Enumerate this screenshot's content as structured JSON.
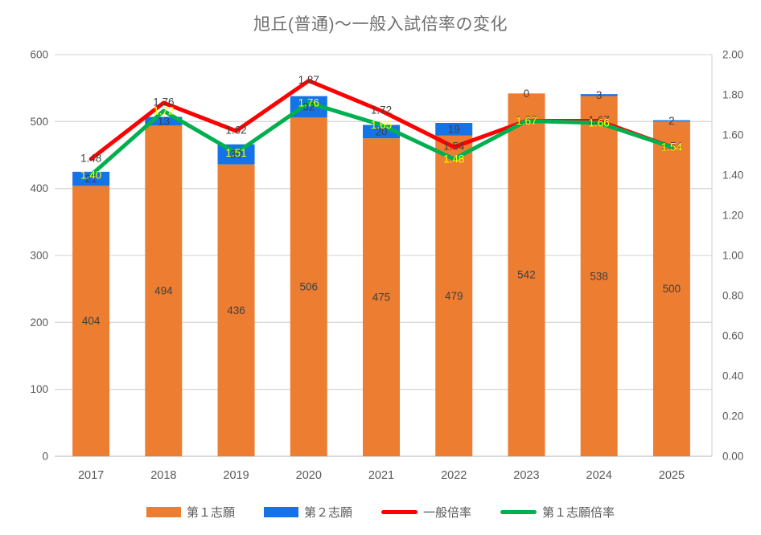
{
  "chart_data": {
    "type": "combo-stacked-bar-line",
    "title": "旭丘(普通)～一般入試倍率の変化",
    "categories": [
      "2017",
      "2018",
      "2019",
      "2020",
      "2021",
      "2022",
      "2023",
      "2024",
      "2025"
    ],
    "series": [
      {
        "name": "第１志願",
        "type": "bar",
        "stack_order": 0,
        "axis": "left",
        "color": "#ED7D31",
        "label_color": "#404040",
        "values": [
          404,
          494,
          436,
          506,
          475,
          479,
          542,
          538,
          500
        ],
        "labels": [
          "404",
          "494",
          "436",
          "506",
          "475",
          "479",
          "542",
          "538",
          "500"
        ]
      },
      {
        "name": "第２志願",
        "type": "bar",
        "stack_order": 1,
        "axis": "left",
        "color": "#1473E6",
        "label_color": "#404040",
        "values": [
          21,
          13,
          30,
          32,
          20,
          19,
          0,
          3,
          2
        ],
        "labels": [
          "21",
          "13",
          "30",
          "32",
          "20",
          "19",
          "0",
          "3",
          "2"
        ]
      },
      {
        "name": "一般倍率",
        "type": "line",
        "axis": "right",
        "color": "#FF0000",
        "label_color": "#404040",
        "values": [
          1.48,
          1.76,
          1.62,
          1.87,
          1.72,
          1.54,
          1.67,
          1.67,
          1.54
        ],
        "labels": [
          "1.48",
          "1.76",
          "1.62",
          "1.87",
          "1.72",
          "1.54",
          "1.67",
          "1.67",
          "1.54"
        ]
      },
      {
        "name": "第１志願倍率",
        "type": "line",
        "axis": "right",
        "color": "#00B050",
        "label_color": "#FFFF00",
        "values": [
          1.4,
          1.72,
          1.51,
          1.76,
          1.65,
          1.48,
          1.67,
          1.66,
          1.54
        ],
        "labels": [
          "1.40",
          "1.72",
          "1.51",
          "1.76",
          "1.65",
          "1.48",
          "1.67",
          "1.66",
          "1.54"
        ]
      }
    ],
    "left_axis": {
      "min": 0,
      "max": 600,
      "step": 100,
      "tick_labels": [
        "0",
        "100",
        "200",
        "300",
        "400",
        "500",
        "600"
      ]
    },
    "right_axis": {
      "min": 0.0,
      "max": 2.0,
      "step": 0.2,
      "tick_labels": [
        "0.00",
        "0.20",
        "0.40",
        "0.60",
        "0.80",
        "1.00",
        "1.20",
        "1.40",
        "1.60",
        "1.80",
        "2.00"
      ]
    },
    "grid": true,
    "legend_position": "bottom",
    "colors": {
      "gridline": "#D9D9D9",
      "axis_line": "#D9D9D9",
      "axis_text": "#595959",
      "title_text": "#6E6E6E"
    }
  }
}
